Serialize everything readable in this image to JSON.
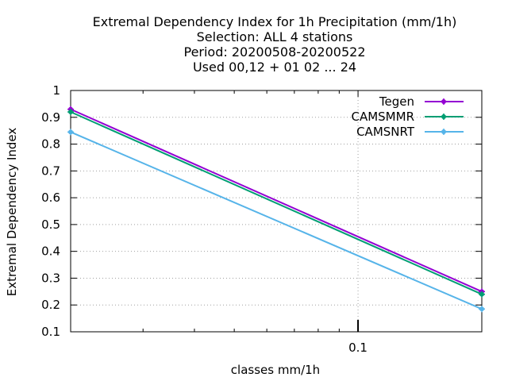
{
  "chart_data": {
    "type": "line",
    "title_lines": [
      "Extremal Dependency Index  for 1h Precipitation (mm/1h)",
      "Selection: ALL      4 stations",
      "Period: 20200508-20200522",
      "Used  00,12  + 01 02 ... 24"
    ],
    "xlabel": "classes mm/1h",
    "ylabel": "Extremal Dependency Index",
    "x_scale": "log",
    "xlim": [
      0.02,
      0.2
    ],
    "x_ticks": [
      0.1
    ],
    "x_tick_labels": [
      "0.1"
    ],
    "ylim": [
      0.1,
      1.0
    ],
    "y_ticks": [
      0.1,
      0.2,
      0.3,
      0.4,
      0.5,
      0.6,
      0.7,
      0.8,
      0.9,
      1.0
    ],
    "y_tick_labels": [
      "0.1",
      "0.2",
      "0.3",
      "0.4",
      "0.5",
      "0.6",
      "0.7",
      "0.8",
      "0.9",
      "1"
    ],
    "grid": true,
    "legend_position": "top-right",
    "x": [
      0.02,
      0.2
    ],
    "series": [
      {
        "name": "Tegen",
        "color": "#9400d3",
        "values": [
          0.93,
          0.25
        ]
      },
      {
        "name": "CAMSMMR",
        "color": "#009e73",
        "values": [
          0.92,
          0.24
        ]
      },
      {
        "name": "CAMSNRT",
        "color": "#56b4e9",
        "values": [
          0.845,
          0.185
        ]
      }
    ]
  }
}
